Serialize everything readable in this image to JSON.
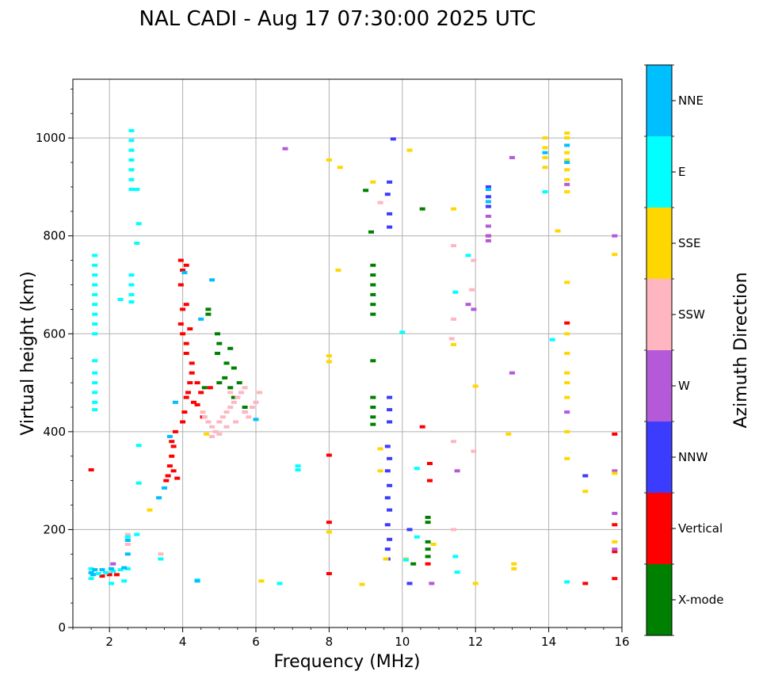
{
  "chart_data": {
    "type": "scatter",
    "title": "NAL CADI - Aug 17 07:30:00 2025 UTC",
    "xlabel": "Frequency (MHz)",
    "ylabel": "Virtual height (km)",
    "xlim": [
      1,
      16
    ],
    "ylim": [
      0,
      1120
    ],
    "xticks": [
      2,
      4,
      6,
      8,
      10,
      12,
      14,
      16
    ],
    "yticks": [
      0,
      200,
      400,
      600,
      800,
      1000
    ],
    "grid": true,
    "colorbar": {
      "label": "Azimuth Direction",
      "categories": [
        {
          "name": "X-mode",
          "color": "#008000"
        },
        {
          "name": "Vertical",
          "color": "#ff0000"
        },
        {
          "name": "NNW",
          "color": "#3c3cff"
        },
        {
          "name": "W",
          "color": "#b45ad8"
        },
        {
          "name": "SSW",
          "color": "#ffb6c1"
        },
        {
          "name": "SSE",
          "color": "#ffd700"
        },
        {
          "name": "E",
          "color": "#00ffff"
        },
        {
          "name": "NNE",
          "color": "#00bfff"
        }
      ]
    },
    "series": [
      {
        "name": "X-mode",
        "points": [
          [
            4.7,
            650
          ],
          [
            4.7,
            640
          ],
          [
            4.95,
            600
          ],
          [
            5.0,
            580
          ],
          [
            4.95,
            560
          ],
          [
            5.3,
            570
          ],
          [
            5.2,
            540
          ],
          [
            5.15,
            510
          ],
          [
            5.4,
            530
          ],
          [
            5.55,
            500
          ],
          [
            5.3,
            490
          ],
          [
            5.0,
            500
          ],
          [
            4.6,
            490
          ],
          [
            5.4,
            470
          ],
          [
            5.7,
            450
          ],
          [
            9.2,
            740
          ],
          [
            9.2,
            720
          ],
          [
            9.2,
            700
          ],
          [
            9.2,
            680
          ],
          [
            9.2,
            660
          ],
          [
            9.2,
            640
          ],
          [
            9.2,
            545
          ],
          [
            9.2,
            470
          ],
          [
            9.2,
            450
          ],
          [
            9.2,
            430
          ],
          [
            9.2,
            415
          ],
          [
            9.15,
            808
          ],
          [
            9.0,
            893
          ],
          [
            10.7,
            175
          ],
          [
            10.7,
            160
          ],
          [
            10.7,
            145
          ],
          [
            10.7,
            225
          ],
          [
            10.7,
            215
          ],
          [
            10.55,
            855
          ],
          [
            10.3,
            130
          ]
        ]
      },
      {
        "name": "Vertical",
        "points": [
          [
            1.5,
            322
          ],
          [
            1.8,
            105
          ],
          [
            2.0,
            108
          ],
          [
            2.2,
            108
          ],
          [
            3.55,
            300
          ],
          [
            3.6,
            310
          ],
          [
            3.65,
            330
          ],
          [
            3.7,
            350
          ],
          [
            3.7,
            380
          ],
          [
            3.75,
            370
          ],
          [
            3.8,
            400
          ],
          [
            3.75,
            320
          ],
          [
            3.85,
            305
          ],
          [
            4.0,
            420
          ],
          [
            4.05,
            440
          ],
          [
            4.1,
            470
          ],
          [
            4.15,
            480
          ],
          [
            4.2,
            500
          ],
          [
            4.3,
            460
          ],
          [
            4.25,
            520
          ],
          [
            4.0,
            600
          ],
          [
            4.1,
            580
          ],
          [
            3.95,
            620
          ],
          [
            4.0,
            650
          ],
          [
            4.1,
            660
          ],
          [
            3.95,
            700
          ],
          [
            4.0,
            730
          ],
          [
            4.1,
            560
          ],
          [
            4.2,
            610
          ],
          [
            4.25,
            540
          ],
          [
            4.4,
            500
          ],
          [
            4.5,
            480
          ],
          [
            4.4,
            455
          ],
          [
            4.55,
            430
          ],
          [
            4.75,
            490
          ],
          [
            3.95,
            750
          ],
          [
            4.1,
            740
          ],
          [
            10.75,
            335
          ],
          [
            10.75,
            300
          ],
          [
            10.7,
            130
          ],
          [
            10.55,
            410
          ],
          [
            14.5,
            622
          ],
          [
            15.0,
            90
          ],
          [
            15.8,
            395
          ],
          [
            15.8,
            210
          ],
          [
            15.8,
            155
          ],
          [
            15.8,
            100
          ],
          [
            8.0,
            352
          ],
          [
            8.0,
            215
          ],
          [
            8.0,
            110
          ],
          [
            12.35,
            800
          ]
        ]
      },
      {
        "name": "NNW",
        "points": [
          [
            9.65,
            470
          ],
          [
            9.65,
            445
          ],
          [
            9.65,
            420
          ],
          [
            9.6,
            370
          ],
          [
            9.65,
            345
          ],
          [
            9.6,
            320
          ],
          [
            9.65,
            290
          ],
          [
            9.6,
            265
          ],
          [
            9.65,
            240
          ],
          [
            9.6,
            210
          ],
          [
            9.65,
            180
          ],
          [
            9.6,
            160
          ],
          [
            9.6,
            140
          ],
          [
            9.6,
            885
          ],
          [
            9.65,
            845
          ],
          [
            9.65,
            910
          ],
          [
            9.75,
            998
          ],
          [
            9.65,
            818
          ],
          [
            10.2,
            200
          ],
          [
            10.2,
            90
          ],
          [
            12.35,
            900
          ],
          [
            12.35,
            880
          ],
          [
            12.35,
            860
          ],
          [
            15.0,
            310
          ],
          [
            5.7,
            440
          ]
        ]
      },
      {
        "name": "W",
        "points": [
          [
            12.35,
            840
          ],
          [
            12.35,
            820
          ],
          [
            12.35,
            800
          ],
          [
            12.35,
            790
          ],
          [
            11.95,
            650
          ],
          [
            11.8,
            660
          ],
          [
            11.5,
            320
          ],
          [
            13.0,
            520
          ],
          [
            13.0,
            960
          ],
          [
            14.5,
            440
          ],
          [
            14.5,
            905
          ],
          [
            15.8,
            800
          ],
          [
            15.8,
            320
          ],
          [
            15.8,
            233
          ],
          [
            15.8,
            160
          ],
          [
            6.8,
            978
          ],
          [
            10.8,
            90
          ],
          [
            2.1,
            130
          ]
        ]
      },
      {
        "name": "SSW",
        "points": [
          [
            4.55,
            440
          ],
          [
            4.6,
            430
          ],
          [
            4.7,
            420
          ],
          [
            4.8,
            410
          ],
          [
            4.9,
            400
          ],
          [
            5.0,
            420
          ],
          [
            5.1,
            430
          ],
          [
            5.2,
            440
          ],
          [
            5.3,
            450
          ],
          [
            5.4,
            460
          ],
          [
            5.5,
            470
          ],
          [
            5.6,
            480
          ],
          [
            5.7,
            440
          ],
          [
            5.8,
            430
          ],
          [
            5.9,
            450
          ],
          [
            6.0,
            460
          ],
          [
            5.2,
            410
          ],
          [
            5.0,
            395
          ],
          [
            4.8,
            390
          ],
          [
            5.3,
            480
          ],
          [
            5.7,
            490
          ],
          [
            5.45,
            420
          ],
          [
            6.1,
            480
          ],
          [
            9.4,
            868
          ],
          [
            11.4,
            780
          ],
          [
            11.4,
            630
          ],
          [
            11.35,
            590
          ],
          [
            11.95,
            360
          ],
          [
            11.9,
            690
          ],
          [
            11.4,
            200
          ],
          [
            11.95,
            750
          ],
          [
            11.4,
            380
          ],
          [
            2.5,
            190
          ],
          [
            2.5,
            170
          ],
          [
            3.4,
            150
          ]
        ]
      },
      {
        "name": "SSE",
        "points": [
          [
            13.9,
            1000
          ],
          [
            13.9,
            980
          ],
          [
            13.9,
            960
          ],
          [
            13.9,
            940
          ],
          [
            14.5,
            1010
          ],
          [
            14.5,
            1000
          ],
          [
            14.5,
            970
          ],
          [
            14.5,
            955
          ],
          [
            14.5,
            935
          ],
          [
            14.5,
            915
          ],
          [
            14.5,
            890
          ],
          [
            14.5,
            705
          ],
          [
            14.5,
            600
          ],
          [
            14.5,
            560
          ],
          [
            14.5,
            520
          ],
          [
            14.5,
            500
          ],
          [
            14.5,
            470
          ],
          [
            14.5,
            400
          ],
          [
            14.5,
            345
          ],
          [
            14.25,
            810
          ],
          [
            15.0,
            278
          ],
          [
            15.8,
            762
          ],
          [
            15.8,
            175
          ],
          [
            15.8,
            315
          ],
          [
            13.05,
            130
          ],
          [
            13.05,
            120
          ],
          [
            12.9,
            395
          ],
          [
            12.0,
            493
          ],
          [
            12.0,
            90
          ],
          [
            11.4,
            855
          ],
          [
            11.4,
            578
          ],
          [
            10.2,
            975
          ],
          [
            10.85,
            170
          ],
          [
            10.1,
            140
          ],
          [
            9.4,
            365
          ],
          [
            9.4,
            320
          ],
          [
            9.2,
            910
          ],
          [
            8.3,
            940
          ],
          [
            8.25,
            730
          ],
          [
            8.0,
            955
          ],
          [
            8.0,
            555
          ],
          [
            8.0,
            543
          ],
          [
            8.0,
            195
          ],
          [
            8.9,
            88
          ],
          [
            9.55,
            140
          ],
          [
            6.15,
            95
          ],
          [
            4.65,
            395
          ],
          [
            3.1,
            240
          ]
        ]
      },
      {
        "name": "E",
        "points": [
          [
            1.6,
            760
          ],
          [
            1.6,
            740
          ],
          [
            1.6,
            720
          ],
          [
            1.6,
            700
          ],
          [
            1.6,
            680
          ],
          [
            1.6,
            660
          ],
          [
            1.6,
            640
          ],
          [
            1.6,
            620
          ],
          [
            1.6,
            600
          ],
          [
            1.6,
            545
          ],
          [
            1.6,
            520
          ],
          [
            1.6,
            500
          ],
          [
            1.6,
            480
          ],
          [
            1.6,
            460
          ],
          [
            1.6,
            445
          ],
          [
            2.6,
            1015
          ],
          [
            2.6,
            995
          ],
          [
            2.6,
            975
          ],
          [
            2.6,
            955
          ],
          [
            2.6,
            935
          ],
          [
            2.6,
            915
          ],
          [
            2.6,
            895
          ],
          [
            2.6,
            720
          ],
          [
            2.6,
            700
          ],
          [
            2.6,
            680
          ],
          [
            2.6,
            665
          ],
          [
            2.8,
            825
          ],
          [
            2.75,
            785
          ],
          [
            2.75,
            895
          ],
          [
            2.3,
            670
          ],
          [
            2.8,
            372
          ],
          [
            2.8,
            295
          ],
          [
            2.75,
            190
          ],
          [
            1.5,
            120
          ],
          [
            1.5,
            100
          ],
          [
            1.7,
            110
          ],
          [
            1.9,
            112
          ],
          [
            2.1,
            115
          ],
          [
            2.3,
            118
          ],
          [
            2.5,
            120
          ],
          [
            2.4,
            95
          ],
          [
            2.05,
            90
          ],
          [
            2.5,
            185
          ],
          [
            3.4,
            140
          ],
          [
            4.4,
            97
          ],
          [
            6.65,
            90
          ],
          [
            7.15,
            330
          ],
          [
            7.15,
            322
          ],
          [
            10.4,
            325
          ],
          [
            10.1,
            138
          ],
          [
            10.4,
            185
          ],
          [
            11.8,
            760
          ],
          [
            11.45,
            685
          ],
          [
            11.5,
            113
          ],
          [
            11.45,
            145
          ],
          [
            10.0,
            603
          ],
          [
            14.1,
            588
          ],
          [
            13.9,
            890
          ],
          [
            14.5,
            93
          ]
        ]
      },
      {
        "name": "NNE",
        "points": [
          [
            1.5,
            112
          ],
          [
            1.55,
            108
          ],
          [
            1.6,
            118
          ],
          [
            1.8,
            118
          ],
          [
            2.05,
            120
          ],
          [
            2.4,
            122
          ],
          [
            2.5,
            150
          ],
          [
            2.5,
            178
          ],
          [
            3.35,
            265
          ],
          [
            3.5,
            285
          ],
          [
            3.65,
            390
          ],
          [
            3.8,
            460
          ],
          [
            4.05,
            725
          ],
          [
            4.5,
            630
          ],
          [
            4.8,
            710
          ],
          [
            4.4,
            95
          ],
          [
            6.0,
            425
          ],
          [
            12.35,
            895
          ],
          [
            12.35,
            870
          ],
          [
            14.5,
            985
          ],
          [
            14.5,
            950
          ],
          [
            13.9,
            970
          ]
        ]
      }
    ]
  }
}
